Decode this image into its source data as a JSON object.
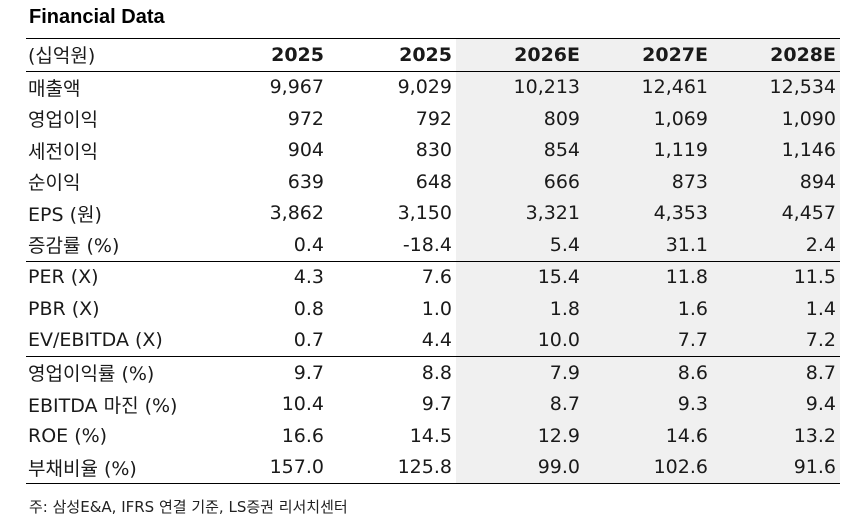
{
  "title": "Financial Data",
  "table": {
    "unit_label": "(십억원)",
    "columns": [
      "2025",
      "2025",
      "2026E",
      "2027E",
      "2028E"
    ],
    "rows": [
      {
        "label": "매출액",
        "values": [
          "9,967",
          "9,029",
          "10,213",
          "12,461",
          "12,534"
        ]
      },
      {
        "label": "영업이익",
        "values": [
          "972",
          "792",
          "809",
          "1,069",
          "1,090"
        ]
      },
      {
        "label": "세전이익",
        "values": [
          "904",
          "830",
          "854",
          "1,119",
          "1,146"
        ]
      },
      {
        "label": "순이익",
        "values": [
          "639",
          "648",
          "666",
          "873",
          "894"
        ]
      },
      {
        "label": "EPS (원)",
        "values": [
          "3,862",
          "3,150",
          "3,321",
          "4,353",
          "4,457"
        ]
      },
      {
        "label": "증감률 (%)",
        "values": [
          "0.4",
          "-18.4",
          "5.4",
          "31.1",
          "2.4"
        ]
      },
      {
        "label": "PER (X)",
        "values": [
          "4.3",
          "7.6",
          "15.4",
          "11.8",
          "11.5"
        ]
      },
      {
        "label": "PBR (X)",
        "values": [
          "0.8",
          "1.0",
          "1.8",
          "1.6",
          "1.4"
        ]
      },
      {
        "label": "EV/EBITDA (X)",
        "values": [
          "0.7",
          "4.4",
          "10.0",
          "7.7",
          "7.2"
        ]
      },
      {
        "label": "영업이익률 (%)",
        "values": [
          "9.7",
          "8.8",
          "7.9",
          "8.6",
          "8.7"
        ]
      },
      {
        "label": "EBITDA 마진 (%)",
        "values": [
          "10.4",
          "9.7",
          "8.7",
          "9.3",
          "9.4"
        ]
      },
      {
        "label": "ROE (%)",
        "values": [
          "16.6",
          "14.5",
          "12.9",
          "14.6",
          "13.2"
        ]
      },
      {
        "label": "부채비율 (%)",
        "values": [
          "157.0",
          "125.8",
          "99.0",
          "102.6",
          "91.6"
        ]
      }
    ]
  },
  "footnote": "주: 삼성E&A, IFRS 연결 기준, LS증권 리서치센터",
  "colors": {
    "shade": "#f0f0f0",
    "rule": "#000000"
  }
}
